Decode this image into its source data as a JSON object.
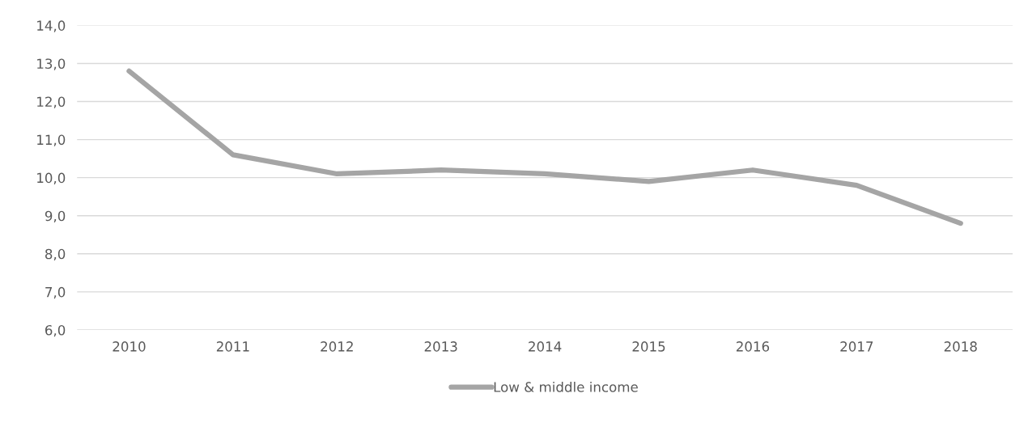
{
  "chart_data": {
    "type": "line",
    "categories": [
      "2010",
      "2011",
      "2012",
      "2013",
      "2014",
      "2015",
      "2016",
      "2017",
      "2018"
    ],
    "series": [
      {
        "name": "Low & middle income",
        "color": "#a5a5a5",
        "values": [
          12.8,
          10.6,
          10.1,
          10.2,
          10.1,
          9.9,
          10.2,
          9.8,
          8.8
        ]
      }
    ],
    "ylim": [
      6,
      14
    ],
    "yticks": [
      {
        "value": 6,
        "label": "6,0"
      },
      {
        "value": 7,
        "label": "7,0"
      },
      {
        "value": 8,
        "label": "8,0"
      },
      {
        "value": 9,
        "label": "9,0"
      },
      {
        "value": 10,
        "label": "10,0"
      },
      {
        "value": 11,
        "label": "11,0"
      },
      {
        "value": 12,
        "label": "12,0"
      },
      {
        "value": 13,
        "label": "13,0"
      },
      {
        "value": 14,
        "label": "14,0"
      }
    ],
    "grid": "y",
    "legend": "bottom",
    "marker": "none",
    "line_style": "solid"
  }
}
